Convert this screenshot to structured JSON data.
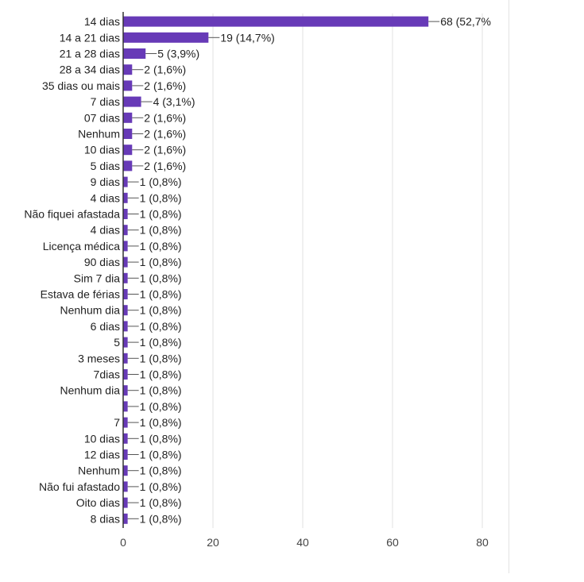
{
  "chart_data": {
    "type": "bar",
    "orientation": "horizontal",
    "title": "",
    "xlabel": "",
    "ylabel": "",
    "xlim": [
      0,
      80
    ],
    "x_ticks": [
      "0",
      "20",
      "40",
      "60",
      "80"
    ],
    "grid": "vertical",
    "legend": "none",
    "bar_color": "#673ab7",
    "categories": [
      "14 dias",
      "14 a 21 dias",
      "21 a 28 dias",
      "28 a 34 dias",
      "35 dias ou mais",
      "7 dias",
      "07 dias",
      "Nenhum",
      "10 dias",
      "5 dias",
      "9 dias",
      "4 dias",
      "Não fiquei afastada",
      "4 dias",
      "Licença médica",
      "90 dias",
      "Sim 7 dia",
      "Estava de férias",
      "Nenhum dia",
      "6 dias",
      "5",
      "3 meses",
      "7dias",
      "Nenhum dia",
      "",
      "7",
      "10 dias",
      "12 dias",
      "Nenhum",
      "Não fui afastado",
      "Oito dias",
      "8 dias"
    ],
    "values": [
      68,
      19,
      5,
      2,
      2,
      4,
      2,
      2,
      2,
      2,
      1,
      1,
      1,
      1,
      1,
      1,
      1,
      1,
      1,
      1,
      1,
      1,
      1,
      1,
      1,
      1,
      1,
      1,
      1,
      1,
      1,
      1
    ],
    "data_labels": [
      "68 (52,7%",
      "19 (14,7%)",
      "5 (3,9%)",
      "2 (1,6%)",
      "2 (1,6%)",
      "4 (3,1%)",
      "2 (1,6%)",
      "2 (1,6%)",
      "2 (1,6%)",
      "2 (1,6%)",
      "1 (0,8%)",
      "1 (0,8%)",
      "1 (0,8%)",
      "1 (0,8%)",
      "1 (0,8%)",
      "1 (0,8%)",
      "1 (0,8%)",
      "1 (0,8%)",
      "1 (0,8%)",
      "1 (0,8%)",
      "1 (0,8%)",
      "1 (0,8%)",
      "1 (0,8%)",
      "1 (0,8%)",
      "1 (0,8%)",
      "1 (0,8%)",
      "1 (0,8%)",
      "1 (0,8%)",
      "1 (0,8%)",
      "1 (0,8%)",
      "1 (0,8%)",
      "1 (0,8%)"
    ]
  }
}
